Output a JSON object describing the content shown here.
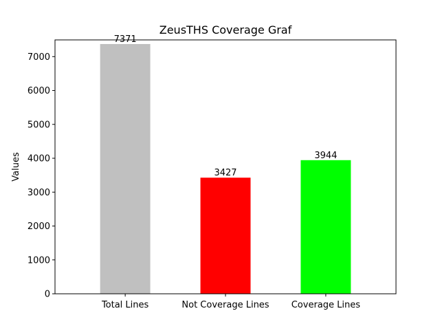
{
  "chart_data": {
    "type": "bar",
    "title": "ZeusTHS Coverage Graf",
    "xlabel": "",
    "ylabel": "Values",
    "categories": [
      "Total Lines",
      "Not Coverage Lines",
      "Coverage Lines"
    ],
    "values": [
      7371,
      3427,
      3944
    ],
    "data_labels": [
      "7371",
      "3427",
      "3944"
    ],
    "colors": [
      "#c0c0c0",
      "#ff0000",
      "#00ff00"
    ],
    "ylim": [
      0,
      7493
    ],
    "yticks": [
      0,
      1000,
      2000,
      3000,
      4000,
      5000,
      6000,
      7000
    ],
    "ytick_labels": [
      "0",
      "1000",
      "2000",
      "3000",
      "4000",
      "5000",
      "6000",
      "7000"
    ],
    "grid": false,
    "legend": "none"
  }
}
